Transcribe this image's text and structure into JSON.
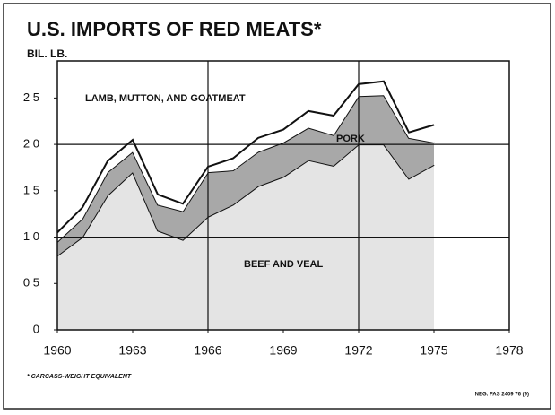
{
  "chart_data": {
    "type": "stacked_area",
    "title": "U.S. IMPORTS OF RED MEATS*",
    "ylabel": "BIL. LB.",
    "footnote": "* CARCASS-WEIGHT EQUIVALENT",
    "source": "NEG. FAS 2409   76 (9)",
    "x": [
      1960,
      1961,
      1962,
      1963,
      1964,
      1965,
      1966,
      1967,
      1968,
      1969,
      1970,
      1971,
      1972,
      1973,
      1974,
      1975
    ],
    "series": [
      {
        "name": "BEEF AND VEAL",
        "color": "#e4e4e4",
        "values": [
          0.8,
          1.0,
          1.45,
          1.7,
          1.07,
          0.97,
          1.22,
          1.35,
          1.55,
          1.65,
          1.83,
          1.77,
          2.0,
          2.0,
          1.63,
          1.78
        ]
      },
      {
        "name": "PORK",
        "color": "#a8a8a8",
        "values": [
          0.15,
          0.2,
          0.25,
          0.22,
          0.28,
          0.31,
          0.48,
          0.37,
          0.37,
          0.37,
          0.35,
          0.33,
          0.52,
          0.53,
          0.44,
          0.24
        ]
      },
      {
        "name": "LAMB, MUTTON, AND GOATMEAT",
        "color": "#ffffff",
        "values": [
          0.1,
          0.12,
          0.12,
          0.13,
          0.11,
          0.08,
          0.06,
          0.13,
          0.15,
          0.14,
          0.18,
          0.21,
          0.13,
          0.15,
          0.06,
          0.19
        ]
      }
    ],
    "xlim": [
      1960,
      1978
    ],
    "xticks": [
      1960,
      1963,
      {
        "value": 1966,
        "label": "1966"
      },
      1969,
      1972,
      1975,
      1978
    ],
    "ylim": [
      0,
      2.9
    ],
    "yticks": [
      0,
      {
        "value": 0.5,
        "label": "0 5"
      },
      {
        "value": 1,
        "label": "1 0"
      },
      {
        "value": 1.5,
        "label": "1 5"
      },
      {
        "value": 2,
        "label": "2 0"
      },
      {
        "value": 2.5,
        "label": "2 5"
      }
    ],
    "xgrid": [
      1966,
      1972
    ],
    "ygrid": [
      1,
      2
    ]
  }
}
